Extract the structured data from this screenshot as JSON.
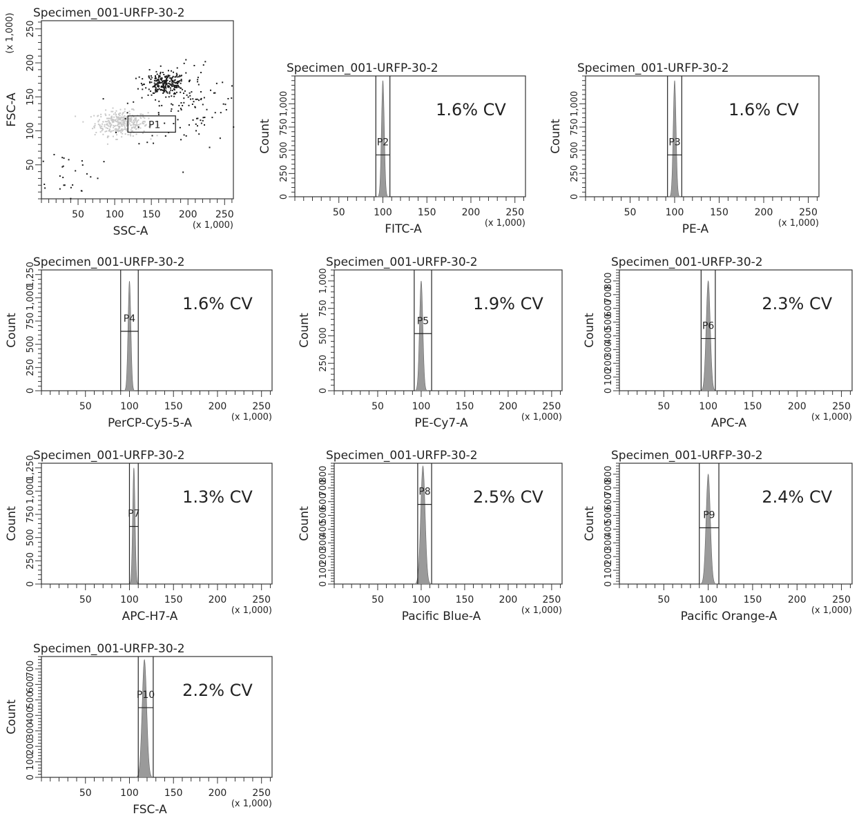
{
  "figure": {
    "x_multiplier": "(x 1,000)",
    "hist_fill": "#9a9a9a",
    "gate_color": "#222222"
  },
  "chart_data": [
    {
      "type": "scatter",
      "title": "Specimen_001-URFP-30-2",
      "xlabel": "SSC-A",
      "ylabel": "FSC-A",
      "x_multiplier": "(x 1,000)",
      "y_multiplier": "(x 1,000)",
      "xlim": [
        0,
        262
      ],
      "ylim": [
        0,
        262
      ],
      "x_ticks": [
        50,
        100,
        150,
        200,
        250
      ],
      "y_ticks": [
        50,
        100,
        150,
        200,
        250
      ],
      "gate": {
        "label": "P1",
        "x": [
          118,
          183
        ],
        "y": [
          98,
          122
        ]
      },
      "populations": [
        {
          "name": "",
          "center": [
            108,
            112
          ],
          "spread": [
            18,
            9
          ],
          "n": 340,
          "color": "#c8c8c8"
        },
        {
          "name": "",
          "center": [
            168,
            170
          ],
          "spread": [
            14,
            8
          ],
          "n": 240,
          "color": "#1a1a1a"
        },
        {
          "name": "",
          "center": [
            200,
            140
          ],
          "spread": [
            40,
            35
          ],
          "n": 130,
          "color": "#1a1a1a"
        },
        {
          "name": "",
          "center": [
            30,
            40
          ],
          "spread": [
            25,
            20
          ],
          "n": 30,
          "color": "#1a1a1a"
        }
      ]
    },
    {
      "type": "histogram",
      "title": "Specimen_001-URFP-30-2",
      "xlabel": "FITC-A",
      "ylabel": "Count",
      "x_multiplier": "(x 1,000)",
      "xlim": [
        0,
        262
      ],
      "ylim": [
        0,
        1300
      ],
      "x_ticks": [
        50,
        100,
        150,
        200,
        250
      ],
      "y_ticks": [
        0,
        250,
        500,
        750,
        1000
      ],
      "y_tick_labels": [
        "0",
        "250",
        "500",
        "750",
        "1,000"
      ],
      "gate": {
        "label": "P2",
        "x": [
          92,
          108
        ],
        "level": 450
      },
      "peak": {
        "center": 100,
        "cv_percent": 1.6,
        "height": 1250
      },
      "annotation": "1.6% CV"
    },
    {
      "type": "histogram",
      "title": "Specimen_001-URFP-30-2",
      "xlabel": "PE-A",
      "ylabel": "Count",
      "x_multiplier": "(x 1,000)",
      "xlim": [
        0,
        262
      ],
      "ylim": [
        0,
        1300
      ],
      "x_ticks": [
        50,
        100,
        150,
        200,
        250
      ],
      "y_ticks": [
        0,
        250,
        500,
        750,
        1000
      ],
      "y_tick_labels": [
        "0",
        "250",
        "500",
        "750",
        "1,000"
      ],
      "gate": {
        "label": "P3",
        "x": [
          92,
          108
        ],
        "level": 450
      },
      "peak": {
        "center": 100,
        "cv_percent": 1.6,
        "height": 1250
      },
      "annotation": "1.6% CV"
    },
    {
      "type": "histogram",
      "title": "Specimen_001-URFP-30-2",
      "xlabel": "PerCP-Cy5-5-A",
      "ylabel": "Count",
      "x_multiplier": "(x 1,000)",
      "xlim": [
        0,
        262
      ],
      "ylim": [
        0,
        1300
      ],
      "x_ticks": [
        50,
        100,
        150,
        200,
        250
      ],
      "y_ticks": [
        0,
        250,
        500,
        750,
        1000,
        1250
      ],
      "y_tick_labels": [
        "0",
        "250",
        "500",
        "750",
        "1,000",
        "1,250"
      ],
      "gate": {
        "label": "P4",
        "x": [
          90,
          110
        ],
        "level": 640
      },
      "peak": {
        "center": 100,
        "cv_percent": 1.6,
        "height": 1180
      },
      "annotation": "1.6% CV"
    },
    {
      "type": "histogram",
      "title": "Specimen_001-URFP-30-2",
      "xlabel": "PE-Cy7-A",
      "ylabel": "Count",
      "x_multiplier": "(x 1,000)",
      "xlim": [
        0,
        262
      ],
      "ylim": [
        0,
        1100
      ],
      "x_ticks": [
        50,
        100,
        150,
        200,
        250
      ],
      "y_ticks": [
        0,
        250,
        500,
        750,
        1000
      ],
      "y_tick_labels": [
        "0",
        "250",
        "500",
        "750",
        "1,000"
      ],
      "gate": {
        "label": "P5",
        "x": [
          92,
          112
        ],
        "level": 520
      },
      "peak": {
        "center": 100,
        "cv_percent": 1.9,
        "height": 1000
      },
      "annotation": "1.9% CV"
    },
    {
      "type": "histogram",
      "title": "Specimen_001-URFP-30-2",
      "xlabel": "APC-A",
      "ylabel": "Count",
      "x_multiplier": "(x 1,000)",
      "xlim": [
        0,
        262
      ],
      "ylim": [
        0,
        880
      ],
      "x_ticks": [
        50,
        100,
        150,
        200,
        250
      ],
      "y_ticks": [
        0,
        100,
        200,
        300,
        400,
        500,
        600,
        700,
        800
      ],
      "y_tick_labels": [
        "0",
        "100",
        "200",
        "300",
        "400",
        "500",
        "600",
        "700",
        "800"
      ],
      "gate": {
        "label": "P6",
        "x": [
          92,
          108
        ],
        "level": 380
      },
      "peak": {
        "center": 100,
        "cv_percent": 2.3,
        "height": 800
      },
      "annotation": "2.3% CV"
    },
    {
      "type": "histogram",
      "title": "Specimen_001-URFP-30-2",
      "xlabel": "APC-H7-A",
      "ylabel": "Count",
      "x_multiplier": "(x 1,000)",
      "xlim": [
        0,
        262
      ],
      "ylim": [
        0,
        1300
      ],
      "x_ticks": [
        50,
        100,
        150,
        200,
        250
      ],
      "y_ticks": [
        0,
        250,
        500,
        750,
        1000,
        1250
      ],
      "y_tick_labels": [
        "0",
        "250",
        "500",
        "750",
        "1,000",
        "1,250"
      ],
      "gate": {
        "label": "P7",
        "x": [
          100,
          110
        ],
        "level": 620
      },
      "peak": {
        "center": 105,
        "cv_percent": 1.3,
        "height": 1250
      },
      "annotation": "1.3% CV"
    },
    {
      "type": "histogram",
      "title": "Specimen_001-URFP-30-2",
      "xlabel": "Pacific Blue-A",
      "ylabel": "Count",
      "x_multiplier": "(x 1,000)",
      "xlim": [
        0,
        262
      ],
      "ylim": [
        0,
        880
      ],
      "x_ticks": [
        50,
        100,
        150,
        200,
        250
      ],
      "y_ticks": [
        0,
        100,
        200,
        300,
        400,
        500,
        600,
        700,
        800
      ],
      "y_tick_labels": [
        "0",
        "100",
        "200",
        "300",
        "400",
        "500",
        "600",
        "700",
        "800"
      ],
      "gate": {
        "label": "P8",
        "x": [
          96,
          112
        ],
        "level": 580
      },
      "peak": {
        "center": 102,
        "cv_percent": 2.5,
        "height": 860
      },
      "annotation": "2.5% CV"
    },
    {
      "type": "histogram",
      "title": "Specimen_001-URFP-30-2",
      "xlabel": "Pacific Orange-A",
      "ylabel": "Count",
      "x_multiplier": "(x 1,000)",
      "xlim": [
        0,
        262
      ],
      "ylim": [
        0,
        880
      ],
      "x_ticks": [
        50,
        100,
        150,
        200,
        250
      ],
      "y_ticks": [
        0,
        100,
        200,
        300,
        400,
        500,
        600,
        700,
        800
      ],
      "y_tick_labels": [
        "0",
        "100",
        "200",
        "300",
        "400",
        "500",
        "600",
        "700",
        "800"
      ],
      "gate": {
        "label": "P9",
        "x": [
          90,
          112
        ],
        "level": 410
      },
      "peak": {
        "center": 100,
        "cv_percent": 2.4,
        "height": 800
      },
      "annotation": "2.4% CV"
    },
    {
      "type": "histogram",
      "title": "Specimen_001-URFP-30-2",
      "xlabel": "FSC-A",
      "ylabel": "Count",
      "x_multiplier": "(x 1,000)",
      "xlim": [
        0,
        262
      ],
      "ylim": [
        0,
        780
      ],
      "x_ticks": [
        50,
        100,
        150,
        200,
        250
      ],
      "y_ticks": [
        0,
        100,
        200,
        300,
        400,
        500,
        600,
        700
      ],
      "y_tick_labels": [
        "0",
        "100",
        "200",
        "300",
        "400",
        "500",
        "600",
        "700"
      ],
      "gate": {
        "label": "P10",
        "x": [
          110,
          127
        ],
        "level": 450
      },
      "peak": {
        "center": 117,
        "cv_percent": 2.2,
        "height": 760
      },
      "annotation": "2.2% CV"
    }
  ]
}
